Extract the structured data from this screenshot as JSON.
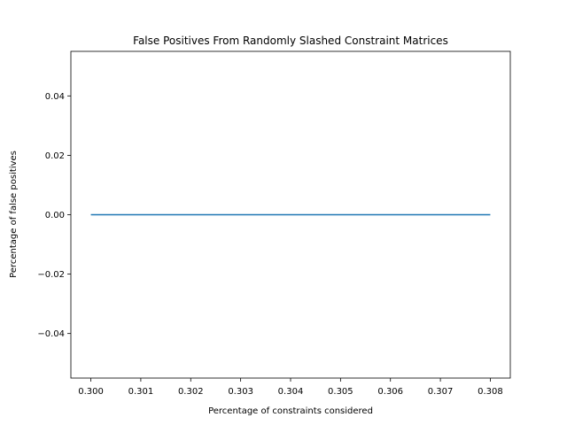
{
  "chart_data": {
    "type": "line",
    "title": "False Positives From Randomly Slashed Constraint Matrices",
    "xlabel": "Percentage of constraints considered",
    "ylabel": "Percentage of false positives",
    "xlim": [
      0.2996,
      0.3084
    ],
    "ylim": [
      -0.055,
      0.055
    ],
    "x_ticks": [
      0.3,
      0.301,
      0.302,
      0.303,
      0.304,
      0.305,
      0.306,
      0.307,
      0.308
    ],
    "x_tick_labels": [
      "0.300",
      "0.301",
      "0.302",
      "0.303",
      "0.304",
      "0.305",
      "0.306",
      "0.307",
      "0.308"
    ],
    "y_ticks": [
      -0.04,
      -0.02,
      0.0,
      0.02,
      0.04
    ],
    "y_tick_labels": [
      "−0.04",
      "−0.02",
      "0.00",
      "0.02",
      "0.04"
    ],
    "grid": false,
    "series": [
      {
        "color": "#1f77b4",
        "x": [
          0.3,
          0.301,
          0.302,
          0.303,
          0.304,
          0.305,
          0.306,
          0.307,
          0.308
        ],
        "y": [
          0,
          0,
          0,
          0,
          0,
          0,
          0,
          0,
          0
        ]
      }
    ]
  }
}
